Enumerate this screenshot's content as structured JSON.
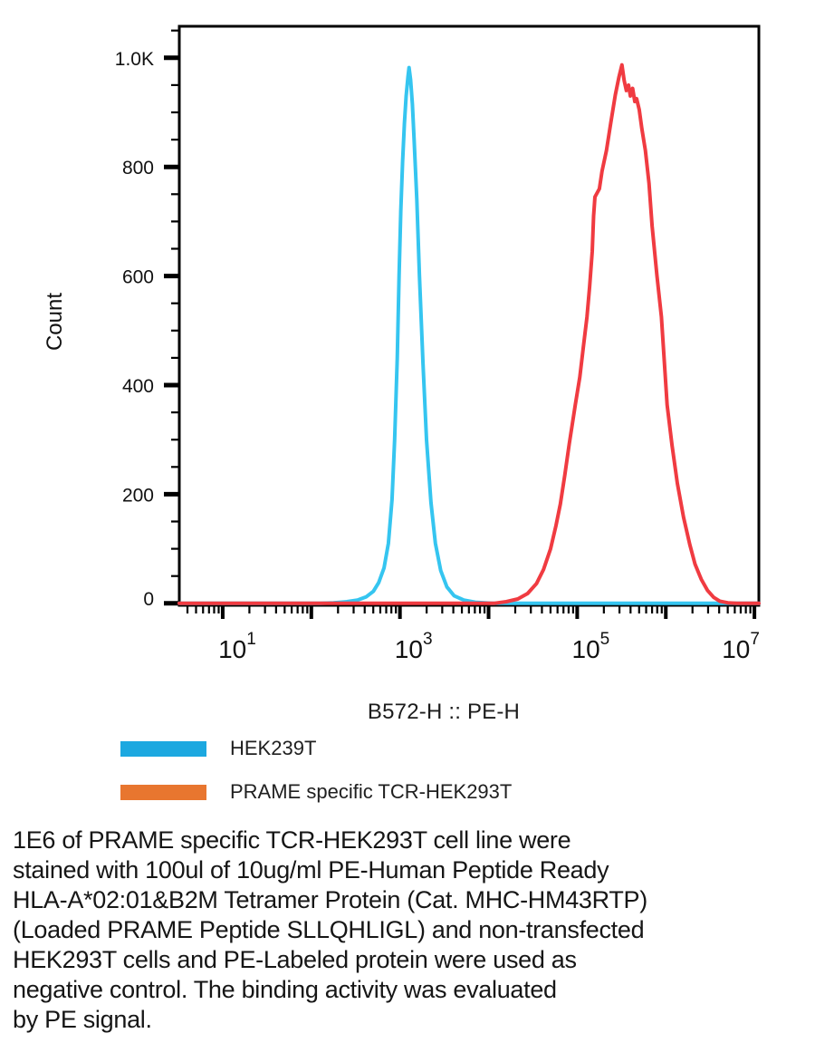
{
  "chart_data": {
    "type": "line",
    "subtype": "flow-cytometry-histogram",
    "title": "",
    "xlabel": "B572-H :: PE-H",
    "ylabel": "Count",
    "x_scale": "log10",
    "xlim_log10": [
      0.51,
      7.05
    ],
    "ylim": [
      0,
      1050
    ],
    "grid": false,
    "legend_position": "below-left",
    "x_major_ticks_log10": [
      1,
      2,
      3,
      4,
      5,
      6,
      7
    ],
    "x_tick_labels": [
      {
        "log10": 1,
        "base": "10",
        "sup": "1"
      },
      {
        "log10": 3,
        "base": "10",
        "sup": "3"
      },
      {
        "log10": 5,
        "base": "10",
        "sup": "5"
      },
      {
        "log10": 7,
        "base": "10",
        "sup": "7"
      }
    ],
    "y_ticks": [
      {
        "value": 0,
        "label": "0"
      },
      {
        "value": 200,
        "label": "200"
      },
      {
        "value": 400,
        "label": "400"
      },
      {
        "value": 600,
        "label": "600"
      },
      {
        "value": 800,
        "label": "800"
      },
      {
        "value": 1000,
        "label": "1.0K"
      }
    ],
    "y_minor_step": 50,
    "series": [
      {
        "name": "HEK239T",
        "color": "#35C5F0",
        "peak_log10x": 3.1,
        "peak_count": 982,
        "points": [
          [
            2.1,
            0
          ],
          [
            2.25,
            1
          ],
          [
            2.4,
            3
          ],
          [
            2.52,
            6
          ],
          [
            2.62,
            12
          ],
          [
            2.7,
            22
          ],
          [
            2.76,
            38
          ],
          [
            2.82,
            65
          ],
          [
            2.87,
            110
          ],
          [
            2.91,
            190
          ],
          [
            2.94,
            300
          ],
          [
            2.97,
            450
          ],
          [
            2.99,
            600
          ],
          [
            3.01,
            720
          ],
          [
            3.03,
            810
          ],
          [
            3.05,
            880
          ],
          [
            3.07,
            930
          ],
          [
            3.09,
            965
          ],
          [
            3.103,
            982
          ],
          [
            3.12,
            960
          ],
          [
            3.14,
            915
          ],
          [
            3.16,
            850
          ],
          [
            3.19,
            740
          ],
          [
            3.22,
            600
          ],
          [
            3.26,
            440
          ],
          [
            3.3,
            300
          ],
          [
            3.35,
            185
          ],
          [
            3.4,
            110
          ],
          [
            3.46,
            60
          ],
          [
            3.53,
            30
          ],
          [
            3.61,
            14
          ],
          [
            3.72,
            6
          ],
          [
            3.85,
            2
          ],
          [
            4.04,
            0
          ]
        ]
      },
      {
        "name": "PRAME specific TCR-HEK293T",
        "color": "#F03B41",
        "peak_log10x": 5.5,
        "peak_count": 987,
        "points": [
          [
            4.06,
            0
          ],
          [
            4.2,
            3
          ],
          [
            4.33,
            8
          ],
          [
            4.44,
            18
          ],
          [
            4.54,
            36
          ],
          [
            4.62,
            62
          ],
          [
            4.7,
            100
          ],
          [
            4.76,
            142
          ],
          [
            4.81,
            182
          ],
          [
            4.86,
            235
          ],
          [
            4.91,
            292
          ],
          [
            4.98,
            365
          ],
          [
            5.03,
            415
          ],
          [
            5.07,
            470
          ],
          [
            5.11,
            525
          ],
          [
            5.14,
            580
          ],
          [
            5.17,
            645
          ],
          [
            5.185,
            710
          ],
          [
            5.2,
            745
          ],
          [
            5.25,
            760
          ],
          [
            5.28,
            792
          ],
          [
            5.33,
            830
          ],
          [
            5.38,
            882
          ],
          [
            5.43,
            932
          ],
          [
            5.47,
            964
          ],
          [
            5.505,
            987
          ],
          [
            5.53,
            958
          ],
          [
            5.555,
            940
          ],
          [
            5.58,
            950
          ],
          [
            5.6,
            930
          ],
          [
            5.625,
            944
          ],
          [
            5.65,
            920
          ],
          [
            5.67,
            925
          ],
          [
            5.7,
            905
          ],
          [
            5.73,
            870
          ],
          [
            5.77,
            830
          ],
          [
            5.81,
            770
          ],
          [
            5.845,
            692
          ],
          [
            5.9,
            600
          ],
          [
            5.95,
            525
          ],
          [
            6.015,
            364
          ],
          [
            6.07,
            290
          ],
          [
            6.13,
            220
          ],
          [
            6.2,
            158
          ],
          [
            6.27,
            108
          ],
          [
            6.33,
            72
          ],
          [
            6.4,
            44
          ],
          [
            6.47,
            24
          ],
          [
            6.54,
            11
          ],
          [
            6.61,
            4
          ],
          [
            6.7,
            1
          ],
          [
            6.8,
            0
          ]
        ]
      }
    ]
  },
  "legend": {
    "items": [
      {
        "label": "HEK239T",
        "color": "#1CA8E0"
      },
      {
        "label": "PRAME specific TCR-HEK293T",
        "color": "#E8762F"
      }
    ]
  },
  "caption": {
    "lines": [
      "1E6 of PRAME specific TCR-HEK293T cell line were",
      "stained with 100ul of 10ug/ml PE-Human Peptide Ready",
      "HLA-A*02:01&B2M Tetramer Protein (Cat. MHC-HM43RTP)",
      "(Loaded PRAME Peptide SLLQHLIGL) and non-transfected",
      "HEK293T cells and PE-Labeled protein were used as",
      "negative control. The binding activity was evaluated",
      "by PE signal."
    ]
  }
}
